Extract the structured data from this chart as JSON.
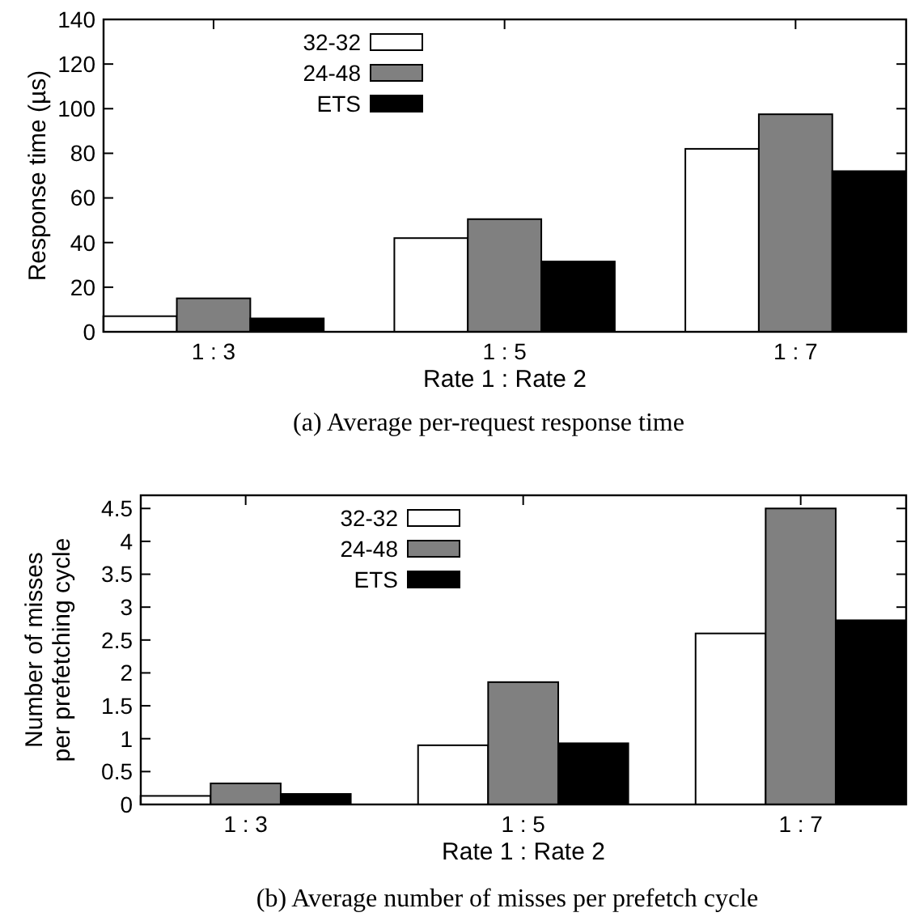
{
  "chart_data": [
    {
      "type": "bar",
      "title": "(a)  Average per-request response time",
      "xlabel": "Rate 1 : Rate 2",
      "ylabel": "Response time (µs)",
      "categories": [
        "1 : 3",
        "1 : 5",
        "1 : 7"
      ],
      "series": [
        {
          "name": "32-32",
          "color": "#ffffff",
          "values": [
            7,
            42,
            82
          ]
        },
        {
          "name": "24-48",
          "color": "#808080",
          "values": [
            15,
            50.5,
            97.5
          ]
        },
        {
          "name": "ETS",
          "color": "#000000",
          "values": [
            6,
            31.5,
            72
          ]
        }
      ],
      "ylim": [
        0,
        140
      ],
      "yticks": [
        0,
        20,
        40,
        60,
        80,
        100,
        120,
        140
      ],
      "grid": false,
      "legend": "top left"
    },
    {
      "type": "bar",
      "title": "(b)  Average number of misses per prefetch cycle",
      "xlabel": "Rate 1 : Rate 2",
      "ylabel": "Number of misses\nper prefetching cycle",
      "categories": [
        "1 : 3",
        "1 : 5",
        "1 : 7"
      ],
      "series": [
        {
          "name": "32-32",
          "color": "#ffffff",
          "values": [
            0.13,
            0.9,
            2.6
          ]
        },
        {
          "name": "24-48",
          "color": "#808080",
          "values": [
            0.32,
            1.86,
            4.5
          ]
        },
        {
          "name": "ETS",
          "color": "#000000",
          "values": [
            0.16,
            0.93,
            2.8
          ]
        }
      ],
      "ylim": [
        0,
        4.7
      ],
      "yticks": [
        0,
        0.5,
        1,
        1.5,
        2,
        2.5,
        3,
        3.5,
        4,
        4.5
      ],
      "grid": false,
      "legend": "top left"
    }
  ]
}
